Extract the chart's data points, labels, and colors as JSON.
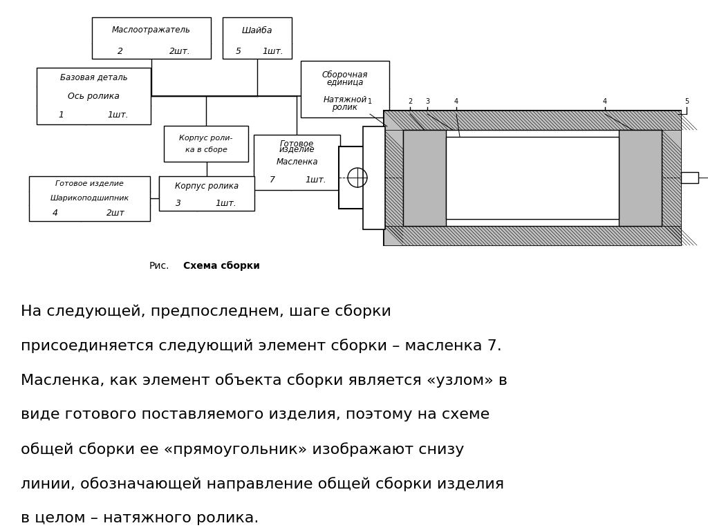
{
  "bg_color": "#ffffff",
  "diagram_title_regular": "Рис.",
  "diagram_title_bold": "Схема сборки",
  "body_text": "На следующей, предпоследнем, шаге сборки\nприсоединяется следующий элемент сборки – масленка 7.\nМасленка, как элемент объекта сборки является «узлом» в\nвиде готового поставляемого изделия, поэтому на схеме\nобщей сборки ее «прямоугольник» изображают снизу\nлинии, обозначающей направление общей сборки изделия\nв целом – натяжного ролика.",
  "fig_width": 10.24,
  "fig_height": 7.67
}
